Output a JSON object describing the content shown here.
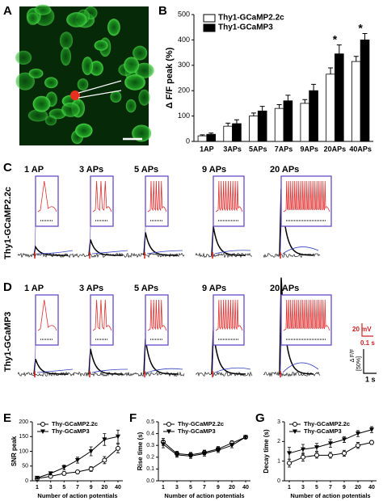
{
  "panel_labels": [
    "A",
    "B",
    "C",
    "D",
    "E",
    "F",
    "G"
  ],
  "traces": {
    "columns": [
      "1 AP",
      "3 APs",
      "5 APs",
      "9 APs",
      "20 APs"
    ],
    "rows": [
      "Thy1-GCaMP2.2c",
      "Thy1-GCaMP3"
    ],
    "scale_labels": [
      "20 mV",
      "0.1 s",
      "Δ F/F",
      "[50%]",
      "1 s"
    ]
  },
  "chart_data": [
    {
      "type": "bar",
      "ylabel": "Δ F/F peak (%)",
      "categories": [
        "1AP",
        "3APs",
        "5APs",
        "7APs",
        "9APs",
        "20APs",
        "40APs"
      ],
      "series": [
        {
          "name": "Thy1-GCaMP2.2c",
          "color": "#ffffff",
          "values": [
            22,
            60,
            100,
            130,
            150,
            265,
            315
          ],
          "errors": [
            4,
            12,
            12,
            15,
            15,
            25,
            20
          ]
        },
        {
          "name": "Thy1-GCaMP3",
          "color": "#000000",
          "values": [
            28,
            70,
            120,
            160,
            200,
            345,
            400
          ],
          "errors": [
            5,
            15,
            18,
            22,
            25,
            35,
            25
          ]
        }
      ],
      "annotations": [
        {
          "text": "*",
          "category": "20APs"
        },
        {
          "text": "*",
          "category": "40APs"
        }
      ],
      "ylim": [
        0,
        500
      ],
      "yticks": [
        0,
        100,
        200,
        300,
        400,
        500
      ]
    },
    {
      "type": "line",
      "ylabel": "SNR peak",
      "xlabel": "Number of action potentials",
      "categories": [
        "1",
        "3",
        "5",
        "7",
        "9",
        "20",
        "40"
      ],
      "series": [
        {
          "name": "Thy-GCaMP2.2c",
          "color": "#000000",
          "marker": "circle-open",
          "values": [
            8,
            15,
            25,
            30,
            40,
            70,
            110
          ],
          "errors": [
            3,
            4,
            6,
            6,
            8,
            12,
            15
          ]
        },
        {
          "name": "Thy-GCaMP3",
          "color": "#000000",
          "marker": "triangle-filled",
          "values": [
            10,
            25,
            45,
            70,
            100,
            140,
            150
          ],
          "errors": [
            3,
            5,
            8,
            10,
            15,
            20,
            22
          ]
        }
      ],
      "ylim": [
        0,
        200
      ],
      "yticks": [
        0,
        50,
        100,
        150,
        200
      ]
    },
    {
      "type": "line",
      "ylabel": "Rise time (s)",
      "xlabel": "Number of action potentials",
      "categories": [
        "1",
        "3",
        "5",
        "7",
        "9",
        "20",
        "40"
      ],
      "series": [
        {
          "name": "Thy-GCaMP2.2c",
          "color": "#000000",
          "marker": "circle-open",
          "values": [
            0.33,
            0.23,
            0.22,
            0.24,
            0.27,
            0.32,
            0.37
          ],
          "errors": [
            0.03,
            0.02,
            0.02,
            0.02,
            0.02,
            0.02,
            0.01
          ]
        },
        {
          "name": "Thy-GCaMP3",
          "color": "#000000",
          "marker": "triangle-filled",
          "values": [
            0.31,
            0.22,
            0.21,
            0.23,
            0.26,
            0.3,
            0.37
          ],
          "errors": [
            0.03,
            0.02,
            0.02,
            0.02,
            0.02,
            0.02,
            0.01
          ]
        }
      ],
      "ylim": [
        0,
        0.5
      ],
      "yticks": [
        {
          "value": 0,
          "label": "0.0"
        },
        0.1,
        0.2,
        0.3,
        0.4,
        0.5
      ]
    },
    {
      "type": "line",
      "ylabel": "Decay time (s)",
      "xlabel": "Number of action potentials",
      "categories": [
        "1",
        "3",
        "5",
        "7",
        "9",
        "20",
        "40"
      ],
      "series": [
        {
          "name": "Thy-GCaMP2.2c",
          "color": "#000000",
          "marker": "circle-open",
          "values": [
            0.9,
            1.2,
            1.3,
            1.3,
            1.4,
            1.8,
            1.95
          ],
          "errors": [
            0.2,
            0.2,
            0.15,
            0.15,
            0.15,
            0.15,
            0.1
          ]
        },
        {
          "name": "Thy-GCaMP3",
          "color": "#000000",
          "marker": "triangle-filled",
          "values": [
            1.4,
            1.6,
            1.7,
            1.9,
            2.1,
            2.4,
            2.6
          ],
          "errors": [
            0.3,
            0.25,
            0.2,
            0.2,
            0.15,
            0.15,
            0.15
          ]
        }
      ],
      "ylim": [
        0,
        3
      ],
      "yticks": [
        0,
        1,
        2,
        3
      ]
    }
  ]
}
